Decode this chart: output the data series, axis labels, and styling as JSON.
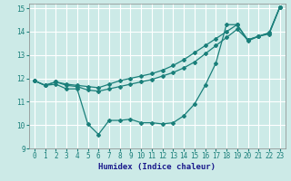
{
  "xlabel": "Humidex (Indice chaleur)",
  "ylabel": "",
  "xlim": [
    -0.5,
    23.5
  ],
  "ylim": [
    9,
    15.2
  ],
  "xticks": [
    0,
    1,
    2,
    3,
    4,
    5,
    6,
    7,
    8,
    9,
    10,
    11,
    12,
    13,
    14,
    15,
    16,
    17,
    18,
    19,
    20,
    21,
    22,
    23
  ],
  "yticks": [
    9,
    10,
    11,
    12,
    13,
    14,
    15
  ],
  "background_color": "#cceae7",
  "grid_color": "#ffffff",
  "line_color": "#1a7f7a",
  "line1_x": [
    0,
    1,
    2,
    3,
    4,
    5,
    6,
    7,
    8,
    9,
    10,
    11,
    12,
    13,
    14,
    15,
    16,
    17,
    18,
    19,
    20,
    21,
    22,
    23
  ],
  "line1_y": [
    11.9,
    11.7,
    11.75,
    11.55,
    11.55,
    10.05,
    9.6,
    10.2,
    10.2,
    10.25,
    10.1,
    10.1,
    10.05,
    10.1,
    10.4,
    10.9,
    11.7,
    12.65,
    14.3,
    14.3,
    13.6,
    13.8,
    13.9,
    15.05
  ],
  "line2_x": [
    0,
    1,
    2,
    3,
    4,
    5,
    6,
    7,
    8,
    9,
    10,
    11,
    12,
    13,
    14,
    15,
    16,
    17,
    18,
    19,
    20,
    21,
    22,
    23
  ],
  "line2_y": [
    11.9,
    11.7,
    11.85,
    11.7,
    11.65,
    11.5,
    11.45,
    11.55,
    11.65,
    11.75,
    11.85,
    11.95,
    12.1,
    12.25,
    12.45,
    12.7,
    13.05,
    13.4,
    13.75,
    14.1,
    13.65,
    13.8,
    13.95,
    15.05
  ],
  "line3_x": [
    0,
    1,
    2,
    3,
    4,
    5,
    6,
    7,
    8,
    9,
    10,
    11,
    12,
    13,
    14,
    15,
    16,
    17,
    18,
    19,
    20,
    21,
    22,
    23
  ],
  "line3_y": [
    11.9,
    11.7,
    11.85,
    11.75,
    11.7,
    11.65,
    11.6,
    11.75,
    11.9,
    12.0,
    12.1,
    12.2,
    12.35,
    12.55,
    12.8,
    13.1,
    13.4,
    13.7,
    14.0,
    14.3,
    13.65,
    13.8,
    13.95,
    15.05
  ],
  "xlabel_color": "#1a1a8c",
  "tick_color": "#1a7f7a",
  "tick_fontsize": 5.5,
  "xlabel_fontsize": 6.5
}
